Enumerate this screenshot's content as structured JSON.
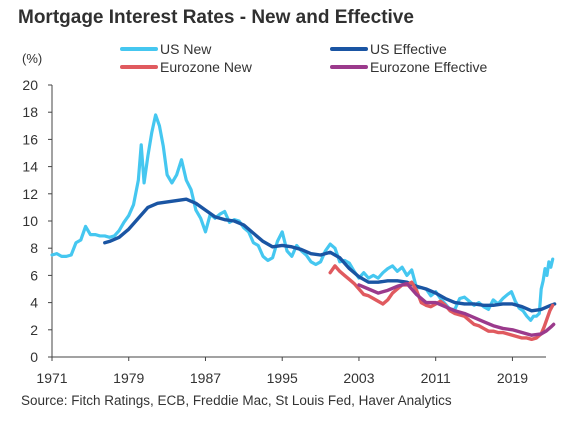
{
  "chart_data": {
    "type": "line",
    "title": "Mortgage Interest Rates - New and Effective",
    "ylabel": "(%)",
    "xlabel": "",
    "source": "Source: Fitch Ratings, ECB, Freddie Mac, St Louis Fed, Haver Analytics",
    "xlim": [
      1971,
      2022.5
    ],
    "ylim": [
      0,
      20
    ],
    "x_ticks": [
      1971,
      1979,
      1987,
      1995,
      2003,
      2011,
      2019
    ],
    "y_ticks": [
      0,
      2,
      4,
      6,
      8,
      10,
      12,
      14,
      16,
      18,
      20
    ],
    "grid": false,
    "legend_position": "top",
    "series": [
      {
        "name": "US New",
        "color": "#45c7f0",
        "points": [
          [
            1971.0,
            7.5
          ],
          [
            1971.5,
            7.6
          ],
          [
            1972.0,
            7.4
          ],
          [
            1972.5,
            7.4
          ],
          [
            1973.0,
            7.5
          ],
          [
            1973.5,
            8.4
          ],
          [
            1974.0,
            8.6
          ],
          [
            1974.5,
            9.6
          ],
          [
            1975.0,
            9.0
          ],
          [
            1975.5,
            9.0
          ],
          [
            1976.0,
            8.9
          ],
          [
            1976.5,
            8.9
          ],
          [
            1977.0,
            8.8
          ],
          [
            1977.5,
            8.9
          ],
          [
            1978.0,
            9.3
          ],
          [
            1978.5,
            9.9
          ],
          [
            1979.0,
            10.4
          ],
          [
            1979.5,
            11.2
          ],
          [
            1980.0,
            13.0
          ],
          [
            1980.3,
            15.6
          ],
          [
            1980.6,
            12.8
          ],
          [
            1981.0,
            14.8
          ],
          [
            1981.4,
            16.5
          ],
          [
            1981.8,
            17.8
          ],
          [
            1982.2,
            17.0
          ],
          [
            1982.6,
            15.5
          ],
          [
            1983.0,
            13.4
          ],
          [
            1983.5,
            12.8
          ],
          [
            1984.0,
            13.4
          ],
          [
            1984.5,
            14.5
          ],
          [
            1985.0,
            13.0
          ],
          [
            1985.5,
            12.3
          ],
          [
            1986.0,
            10.8
          ],
          [
            1986.5,
            10.2
          ],
          [
            1987.0,
            9.2
          ],
          [
            1987.5,
            10.5
          ],
          [
            1988.0,
            10.2
          ],
          [
            1988.5,
            10.5
          ],
          [
            1989.0,
            10.7
          ],
          [
            1989.5,
            9.9
          ],
          [
            1990.0,
            10.1
          ],
          [
            1990.5,
            10.0
          ],
          [
            1991.0,
            9.5
          ],
          [
            1991.5,
            9.2
          ],
          [
            1992.0,
            8.4
          ],
          [
            1992.5,
            8.2
          ],
          [
            1993.0,
            7.4
          ],
          [
            1993.5,
            7.1
          ],
          [
            1994.0,
            7.3
          ],
          [
            1994.5,
            8.5
          ],
          [
            1995.0,
            9.2
          ],
          [
            1995.5,
            7.8
          ],
          [
            1996.0,
            7.4
          ],
          [
            1996.5,
            8.2
          ],
          [
            1997.0,
            7.8
          ],
          [
            1997.5,
            7.5
          ],
          [
            1998.0,
            7.0
          ],
          [
            1998.5,
            6.8
          ],
          [
            1999.0,
            7.0
          ],
          [
            1999.5,
            7.8
          ],
          [
            2000.0,
            8.3
          ],
          [
            2000.5,
            8.0
          ],
          [
            2001.0,
            7.0
          ],
          [
            2001.5,
            7.1
          ],
          [
            2002.0,
            6.9
          ],
          [
            2002.5,
            6.3
          ],
          [
            2003.0,
            5.8
          ],
          [
            2003.5,
            6.2
          ],
          [
            2004.0,
            5.8
          ],
          [
            2004.5,
            6.0
          ],
          [
            2005.0,
            5.8
          ],
          [
            2005.5,
            6.2
          ],
          [
            2006.0,
            6.5
          ],
          [
            2006.5,
            6.7
          ],
          [
            2007.0,
            6.3
          ],
          [
            2007.5,
            6.6
          ],
          [
            2008.0,
            6.0
          ],
          [
            2008.5,
            6.4
          ],
          [
            2009.0,
            5.1
          ],
          [
            2009.5,
            5.1
          ],
          [
            2010.0,
            5.0
          ],
          [
            2010.5,
            4.5
          ],
          [
            2011.0,
            4.8
          ],
          [
            2011.5,
            4.3
          ],
          [
            2012.0,
            3.9
          ],
          [
            2012.5,
            3.5
          ],
          [
            2013.0,
            3.5
          ],
          [
            2013.5,
            4.3
          ],
          [
            2014.0,
            4.4
          ],
          [
            2014.5,
            4.1
          ],
          [
            2015.0,
            3.8
          ],
          [
            2015.5,
            4.0
          ],
          [
            2016.0,
            3.7
          ],
          [
            2016.5,
            3.5
          ],
          [
            2017.0,
            4.2
          ],
          [
            2017.5,
            3.9
          ],
          [
            2018.0,
            4.3
          ],
          [
            2018.5,
            4.6
          ],
          [
            2018.9,
            4.8
          ],
          [
            2019.3,
            4.1
          ],
          [
            2019.7,
            3.6
          ],
          [
            2020.1,
            3.4
          ],
          [
            2020.5,
            3.0
          ],
          [
            2020.9,
            2.7
          ],
          [
            2021.2,
            3.0
          ],
          [
            2021.5,
            3.0
          ],
          [
            2021.8,
            3.2
          ],
          [
            2022.0,
            5.0
          ],
          [
            2022.2,
            5.6
          ],
          [
            2022.4,
            6.5
          ],
          [
            2022.6,
            6.0
          ],
          [
            2022.8,
            7.0
          ],
          [
            2023.0,
            6.6
          ],
          [
            2023.2,
            7.2
          ]
        ]
      },
      {
        "name": "US Effective",
        "color": "#1a55a3",
        "points": [
          [
            1976.5,
            8.4
          ],
          [
            1977.0,
            8.5
          ],
          [
            1978.0,
            8.8
          ],
          [
            1979.0,
            9.4
          ],
          [
            1980.0,
            10.2
          ],
          [
            1981.0,
            11.0
          ],
          [
            1982.0,
            11.3
          ],
          [
            1983.0,
            11.4
          ],
          [
            1984.0,
            11.5
          ],
          [
            1985.0,
            11.6
          ],
          [
            1986.0,
            11.3
          ],
          [
            1987.0,
            10.8
          ],
          [
            1988.0,
            10.3
          ],
          [
            1989.0,
            10.1
          ],
          [
            1990.0,
            10.0
          ],
          [
            1991.0,
            9.7
          ],
          [
            1992.0,
            9.1
          ],
          [
            1993.0,
            8.5
          ],
          [
            1994.0,
            8.1
          ],
          [
            1995.0,
            8.2
          ],
          [
            1996.0,
            8.1
          ],
          [
            1997.0,
            7.9
          ],
          [
            1998.0,
            7.6
          ],
          [
            1999.0,
            7.5
          ],
          [
            2000.0,
            7.7
          ],
          [
            2001.0,
            7.3
          ],
          [
            2002.0,
            6.5
          ],
          [
            2003.0,
            5.9
          ],
          [
            2004.0,
            5.5
          ],
          [
            2005.0,
            5.5
          ],
          [
            2006.0,
            5.6
          ],
          [
            2007.0,
            5.6
          ],
          [
            2008.0,
            5.5
          ],
          [
            2009.0,
            5.2
          ],
          [
            2010.0,
            5.0
          ],
          [
            2011.0,
            4.7
          ],
          [
            2012.0,
            4.3
          ],
          [
            2013.0,
            4.0
          ],
          [
            2014.0,
            3.9
          ],
          [
            2015.0,
            3.9
          ],
          [
            2016.0,
            3.8
          ],
          [
            2017.0,
            3.8
          ],
          [
            2018.0,
            3.9
          ],
          [
            2019.0,
            3.9
          ],
          [
            2020.0,
            3.7
          ],
          [
            2021.0,
            3.4
          ],
          [
            2022.0,
            3.5
          ],
          [
            2023.0,
            3.8
          ],
          [
            2023.4,
            3.9
          ]
        ]
      },
      {
        "name": "Eurozone New",
        "color": "#e05a5f",
        "points": [
          [
            2000.0,
            6.2
          ],
          [
            2000.5,
            6.7
          ],
          [
            2001.0,
            6.3
          ],
          [
            2001.5,
            6.0
          ],
          [
            2002.0,
            5.7
          ],
          [
            2002.5,
            5.4
          ],
          [
            2003.0,
            5.0
          ],
          [
            2003.5,
            4.6
          ],
          [
            2004.0,
            4.5
          ],
          [
            2004.5,
            4.3
          ],
          [
            2005.0,
            4.1
          ],
          [
            2005.5,
            3.9
          ],
          [
            2006.0,
            4.2
          ],
          [
            2006.5,
            4.7
          ],
          [
            2007.0,
            5.0
          ],
          [
            2007.5,
            5.3
          ],
          [
            2008.0,
            5.3
          ],
          [
            2008.5,
            5.5
          ],
          [
            2009.0,
            4.9
          ],
          [
            2009.5,
            4.0
          ],
          [
            2010.0,
            3.8
          ],
          [
            2010.5,
            3.7
          ],
          [
            2011.0,
            3.9
          ],
          [
            2011.5,
            4.1
          ],
          [
            2012.0,
            3.8
          ],
          [
            2012.5,
            3.4
          ],
          [
            2013.0,
            3.2
          ],
          [
            2013.5,
            3.1
          ],
          [
            2014.0,
            3.0
          ],
          [
            2014.5,
            2.7
          ],
          [
            2015.0,
            2.4
          ],
          [
            2015.5,
            2.3
          ],
          [
            2016.0,
            2.1
          ],
          [
            2016.5,
            1.9
          ],
          [
            2017.0,
            1.9
          ],
          [
            2017.5,
            1.8
          ],
          [
            2018.0,
            1.8
          ],
          [
            2018.5,
            1.7
          ],
          [
            2019.0,
            1.6
          ],
          [
            2019.5,
            1.5
          ],
          [
            2020.0,
            1.4
          ],
          [
            2020.5,
            1.4
          ],
          [
            2021.0,
            1.3
          ],
          [
            2021.5,
            1.4
          ],
          [
            2022.0,
            1.7
          ],
          [
            2022.3,
            2.2
          ],
          [
            2022.6,
            2.8
          ],
          [
            2022.9,
            3.4
          ],
          [
            2023.2,
            3.8
          ]
        ]
      },
      {
        "name": "Eurozone Effective",
        "color": "#9b3a8c",
        "points": [
          [
            2003.0,
            5.3
          ],
          [
            2004.0,
            5.0
          ],
          [
            2005.0,
            4.7
          ],
          [
            2006.0,
            4.9
          ],
          [
            2007.0,
            5.2
          ],
          [
            2008.0,
            5.4
          ],
          [
            2009.0,
            4.6
          ],
          [
            2010.0,
            4.0
          ],
          [
            2011.0,
            4.0
          ],
          [
            2012.0,
            3.7
          ],
          [
            2013.0,
            3.4
          ],
          [
            2014.0,
            3.2
          ],
          [
            2015.0,
            2.9
          ],
          [
            2016.0,
            2.6
          ],
          [
            2017.0,
            2.3
          ],
          [
            2018.0,
            2.1
          ],
          [
            2019.0,
            2.0
          ],
          [
            2020.0,
            1.8
          ],
          [
            2021.0,
            1.6
          ],
          [
            2022.0,
            1.7
          ],
          [
            2022.5,
            1.9
          ],
          [
            2023.0,
            2.2
          ],
          [
            2023.3,
            2.4
          ]
        ]
      }
    ]
  }
}
